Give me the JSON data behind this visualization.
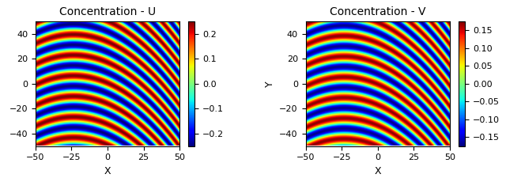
{
  "title_U": "Concentration - U",
  "title_V": "Concentration - V",
  "xlabel": "X",
  "ylabel_U": "",
  "ylabel_V": "Y",
  "xlim": [
    -50,
    50
  ],
  "ylim": [
    -50,
    50
  ],
  "xticks": [
    -50,
    -25,
    0,
    25,
    50
  ],
  "yticks": [
    -40,
    -20,
    0,
    20,
    40
  ],
  "clim_U": [
    -0.25,
    0.25
  ],
  "clim_V": [
    -0.175,
    0.175
  ],
  "colorbar_ticks_U": [
    -0.2,
    -0.1,
    0.0,
    0.1,
    0.2
  ],
  "colorbar_ticks_V": [
    -0.15,
    -0.1,
    -0.05,
    0.0,
    0.05,
    0.1,
    0.15
  ],
  "cmap": "jet",
  "nx": 300,
  "ny": 300,
  "amp_U": 0.25,
  "amp_V": 0.17,
  "kx": 0.19,
  "ky": 0.38,
  "curve_strength": 0.004,
  "phase_shift_V": 0.4
}
